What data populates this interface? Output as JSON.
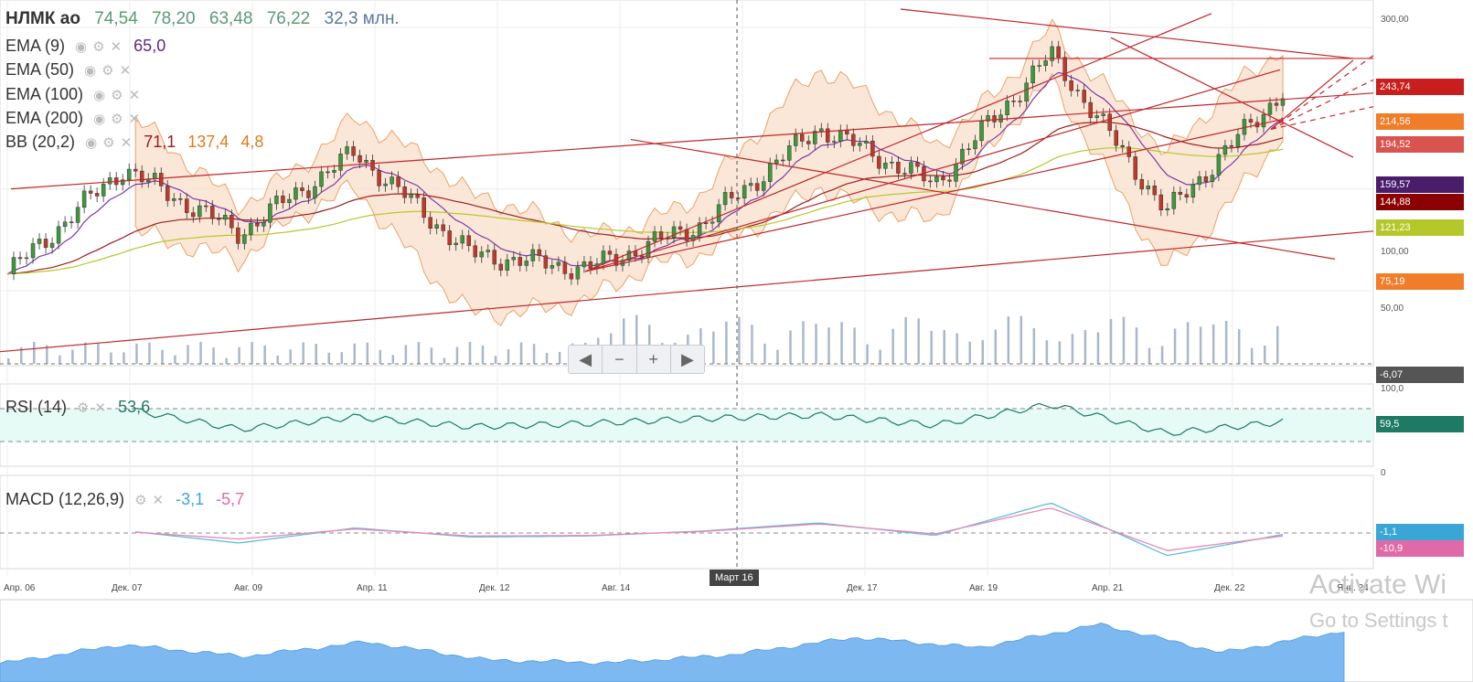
{
  "header": {
    "ticker": "НЛМК ао",
    "open": "74,54",
    "high": "78,20",
    "low": "63,48",
    "close": "76,22",
    "volume": "32,3 млн."
  },
  "indicators": [
    {
      "label": "EMA (9)",
      "value": "65,0",
      "color": "#5b2a86"
    },
    {
      "label": "EMA (50)",
      "value": "",
      "color": ""
    },
    {
      "label": "EMA (100)",
      "value": "",
      "color": ""
    },
    {
      "label": "EMA (200)",
      "value": "",
      "color": ""
    },
    {
      "label": "BB (20,2)",
      "value": "71,1",
      "value2": "137,4",
      "value3": "4,8",
      "color": "#9c1c1c",
      "color2": "#e07b1f",
      "color3": "#e07b1f"
    }
  ],
  "rsi": {
    "label": "RSI (14)",
    "value": "53,6",
    "tag": "59,5",
    "axis": [
      "100,0",
      "0"
    ]
  },
  "macd": {
    "label": "MACD (12,26,9)",
    "value1": "-3,1",
    "value2": "-5,7",
    "tag1": "-1,1",
    "tag2": "-10,9"
  },
  "price_tags": [
    {
      "text": "243,74",
      "color": "#c81e1e"
    },
    {
      "text": "214,56",
      "color": "#ef7d2a"
    },
    {
      "text": "194,52",
      "color": "#d9534f"
    },
    {
      "text": "159,57",
      "color": "#4a1d6b"
    },
    {
      "text": "144,88",
      "color": "#8b0000"
    },
    {
      "text": "121,23",
      "color": "#b5c82a"
    },
    {
      "text": "75,19",
      "color": "#ef7d2a"
    },
    {
      "text": "-6,07",
      "color": "#555555"
    }
  ],
  "y_axis_labels": [
    "300,00",
    "100,00",
    "50,00"
  ],
  "x_axis_labels": [
    "Апр. 06",
    "Дек. 07",
    "Авг. 09",
    "Апр. 11",
    "Дек. 12",
    "Авг. 14",
    "Дек. 17",
    "Авг. 19",
    "Апр. 21",
    "Дек. 22",
    "Янв. 24"
  ],
  "crosshair_label": "Март 16",
  "navigator": {
    "buttons": [
      "◀",
      "−",
      "+",
      "▶"
    ]
  },
  "watermark": {
    "line1": "Activate Wi",
    "line2": "Go to Settings t"
  },
  "colors": {
    "up": "#3c9a3c",
    "down": "#c0392b",
    "bb_fill": "#fbe3d2",
    "bb_line": "#e8924a",
    "volume": "#a9b8c9",
    "rsi_band": "#e6fbf6",
    "rsi_line": "#1e7a64",
    "macd_line": "#5cbde0",
    "signal_line": "#e886b4",
    "nav_area": "#7db9f0"
  },
  "chart_data": {
    "type": "candlestick",
    "scale": "log",
    "x": [
      "Апр. 06",
      "Дек. 07",
      "Авг. 09",
      "Апр. 11",
      "Дек. 12",
      "Авг. 14",
      "Март 16",
      "Дек. 17",
      "Авг. 19",
      "Апр. 21",
      "Дек. 22",
      "Янв. 24"
    ],
    "close": [
      56,
      115,
      74,
      128,
      64,
      58,
      79,
      152,
      103,
      250,
      85,
      195
    ],
    "ylim": [
      30,
      340
    ],
    "yticks": [
      50,
      100,
      300
    ],
    "rsi": [
      62,
      70,
      45,
      60,
      48,
      52,
      58,
      62,
      50,
      75,
      40,
      54
    ],
    "macd": [
      0,
      5,
      -20,
      10,
      -8,
      -6,
      4,
      20,
      -5,
      60,
      -45,
      -3
    ],
    "signal": [
      0,
      3,
      -12,
      8,
      -6,
      -5,
      3,
      18,
      -2,
      50,
      -35,
      -6
    ]
  }
}
